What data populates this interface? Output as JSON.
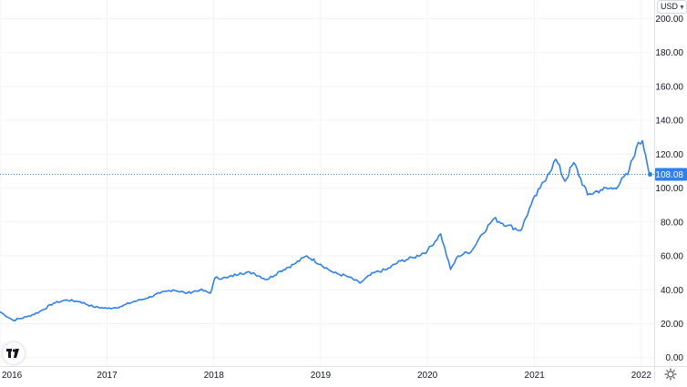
{
  "currency_selector": {
    "label": "USD",
    "icon": "chevron-down-icon"
  },
  "price_label": "108.08",
  "logo": {
    "icon": "tradingview-logo-icon",
    "text": "TV"
  },
  "settings": {
    "icon": "gear-icon"
  },
  "colors": {
    "line": "#2f80ed",
    "price_label_bg": "#2f80ed",
    "grid": "#f0f3fa",
    "axis_text": "#131722"
  },
  "chart_data": {
    "type": "line",
    "series": [
      {
        "x": [
          "2016-01-01",
          "2016-02-15",
          "2016-04-01",
          "2016-05-15",
          "2016-07-01",
          "2016-08-15",
          "2016-10-01",
          "2016-11-15",
          "2017-01-01",
          "2017-02-15",
          "2017-04-01",
          "2017-05-15",
          "2017-07-01",
          "2017-08-15",
          "2017-10-01",
          "2017-11-15",
          "2017-12-20",
          "2018-01-05",
          "2018-02-15",
          "2018-04-01",
          "2018-05-15",
          "2018-07-01",
          "2018-08-15",
          "2018-10-01",
          "2018-11-15",
          "2019-01-01",
          "2019-02-15",
          "2019-04-01",
          "2019-05-15",
          "2019-07-01",
          "2019-08-15",
          "2019-10-01",
          "2019-11-15",
          "2020-01-01",
          "2020-02-15",
          "2020-03-20",
          "2020-04-15",
          "2020-06-01",
          "2020-07-01",
          "2020-08-15",
          "2020-10-01",
          "2020-11-15",
          "2020-12-20",
          "2021-01-20",
          "2021-02-15",
          "2021-03-15",
          "2021-04-15",
          "2021-05-15",
          "2021-07-01",
          "2021-08-15",
          "2021-10-01",
          "2021-11-15",
          "2021-12-15",
          "2022-01-05",
          "2022-01-15",
          "2022-01-31"
        ],
        "y": [
          27,
          22,
          24,
          27,
          32,
          34,
          33,
          30,
          29,
          30,
          33,
          35,
          38,
          40,
          38,
          40,
          38,
          47,
          47,
          50,
          50,
          46,
          51,
          55,
          60,
          55,
          50,
          48,
          44,
          50,
          52,
          57,
          59,
          63,
          73,
          52,
          60,
          63,
          72,
          82,
          78,
          75,
          90,
          100,
          108,
          117,
          104,
          115,
          96,
          99,
          100,
          108,
          124,
          128,
          120,
          108
        ]
      }
    ],
    "x_ticks": [
      "2016",
      "2017",
      "2018",
      "2019",
      "2020",
      "2021",
      "2022"
    ],
    "y_ticks": [
      "0.00",
      "20.00",
      "40.00",
      "60.00",
      "80.00",
      "100.00",
      "120.00",
      "140.00",
      "160.00",
      "180.00",
      "200.00"
    ],
    "ylim": [
      -5,
      211
    ],
    "xlim": [
      "2016-01-01",
      "2022-02-14"
    ],
    "last_value": 108.08,
    "grid": true,
    "title": "",
    "xlabel": "",
    "ylabel": ""
  }
}
